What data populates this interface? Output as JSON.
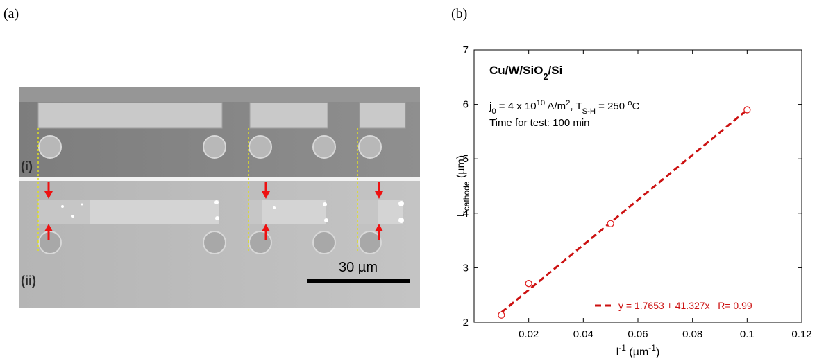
{
  "panels": {
    "a": "(a)",
    "b": "(b)"
  },
  "sem": {
    "top_label": "(i)",
    "bottom_label": "(ii)",
    "scale_bar": "30 µm"
  },
  "chart_data": {
    "type": "scatter",
    "x": [
      0.01,
      0.02,
      0.05,
      0.1
    ],
    "values": [
      2.13,
      2.71,
      3.81,
      5.9
    ],
    "color": "#e02020",
    "fit": {
      "intercept": 1.7653,
      "slope": 41.327,
      "label": "y = 1.7653 + 41.327x   R= 0.99",
      "color": "#cc1111"
    },
    "legend": "lower right",
    "xlim": [
      0,
      0.12
    ],
    "xticks": [
      0.02,
      0.04,
      0.06,
      0.08,
      0.1,
      0.12
    ],
    "ylim": [
      2,
      7
    ],
    "yticks": [
      2,
      3,
      4,
      5,
      6,
      7
    ],
    "xlabel": [
      {
        "text": "l"
      },
      {
        "text": "-1",
        "sup": true
      },
      {
        "text": " (µm"
      },
      {
        "text": "-1",
        "sup": true
      },
      {
        "text": ")"
      }
    ],
    "ylabel": [
      {
        "text": "L"
      },
      {
        "text": "cathode",
        "sub": true
      },
      {
        "text": " (µm)"
      }
    ],
    "annotations": [
      [
        {
          "text": "Cu/W/SiO"
        },
        {
          "text": "2",
          "sub": true
        },
        {
          "text": "/Si"
        }
      ],
      [
        {
          "text": "j"
        },
        {
          "text": "0",
          "sub": true
        },
        {
          "text": " = 4 x 10"
        },
        {
          "text": "10",
          "sup": true
        },
        {
          "text": " A/m"
        },
        {
          "text": "2",
          "sup": true
        },
        {
          "text": ", T"
        },
        {
          "text": "S-H",
          "sub": true
        },
        {
          "text": " = 250 "
        },
        {
          "text": "o",
          "sup": true
        },
        {
          "text": "C"
        }
      ],
      [
        {
          "text": "Time for test: 100 min"
        }
      ]
    ]
  }
}
